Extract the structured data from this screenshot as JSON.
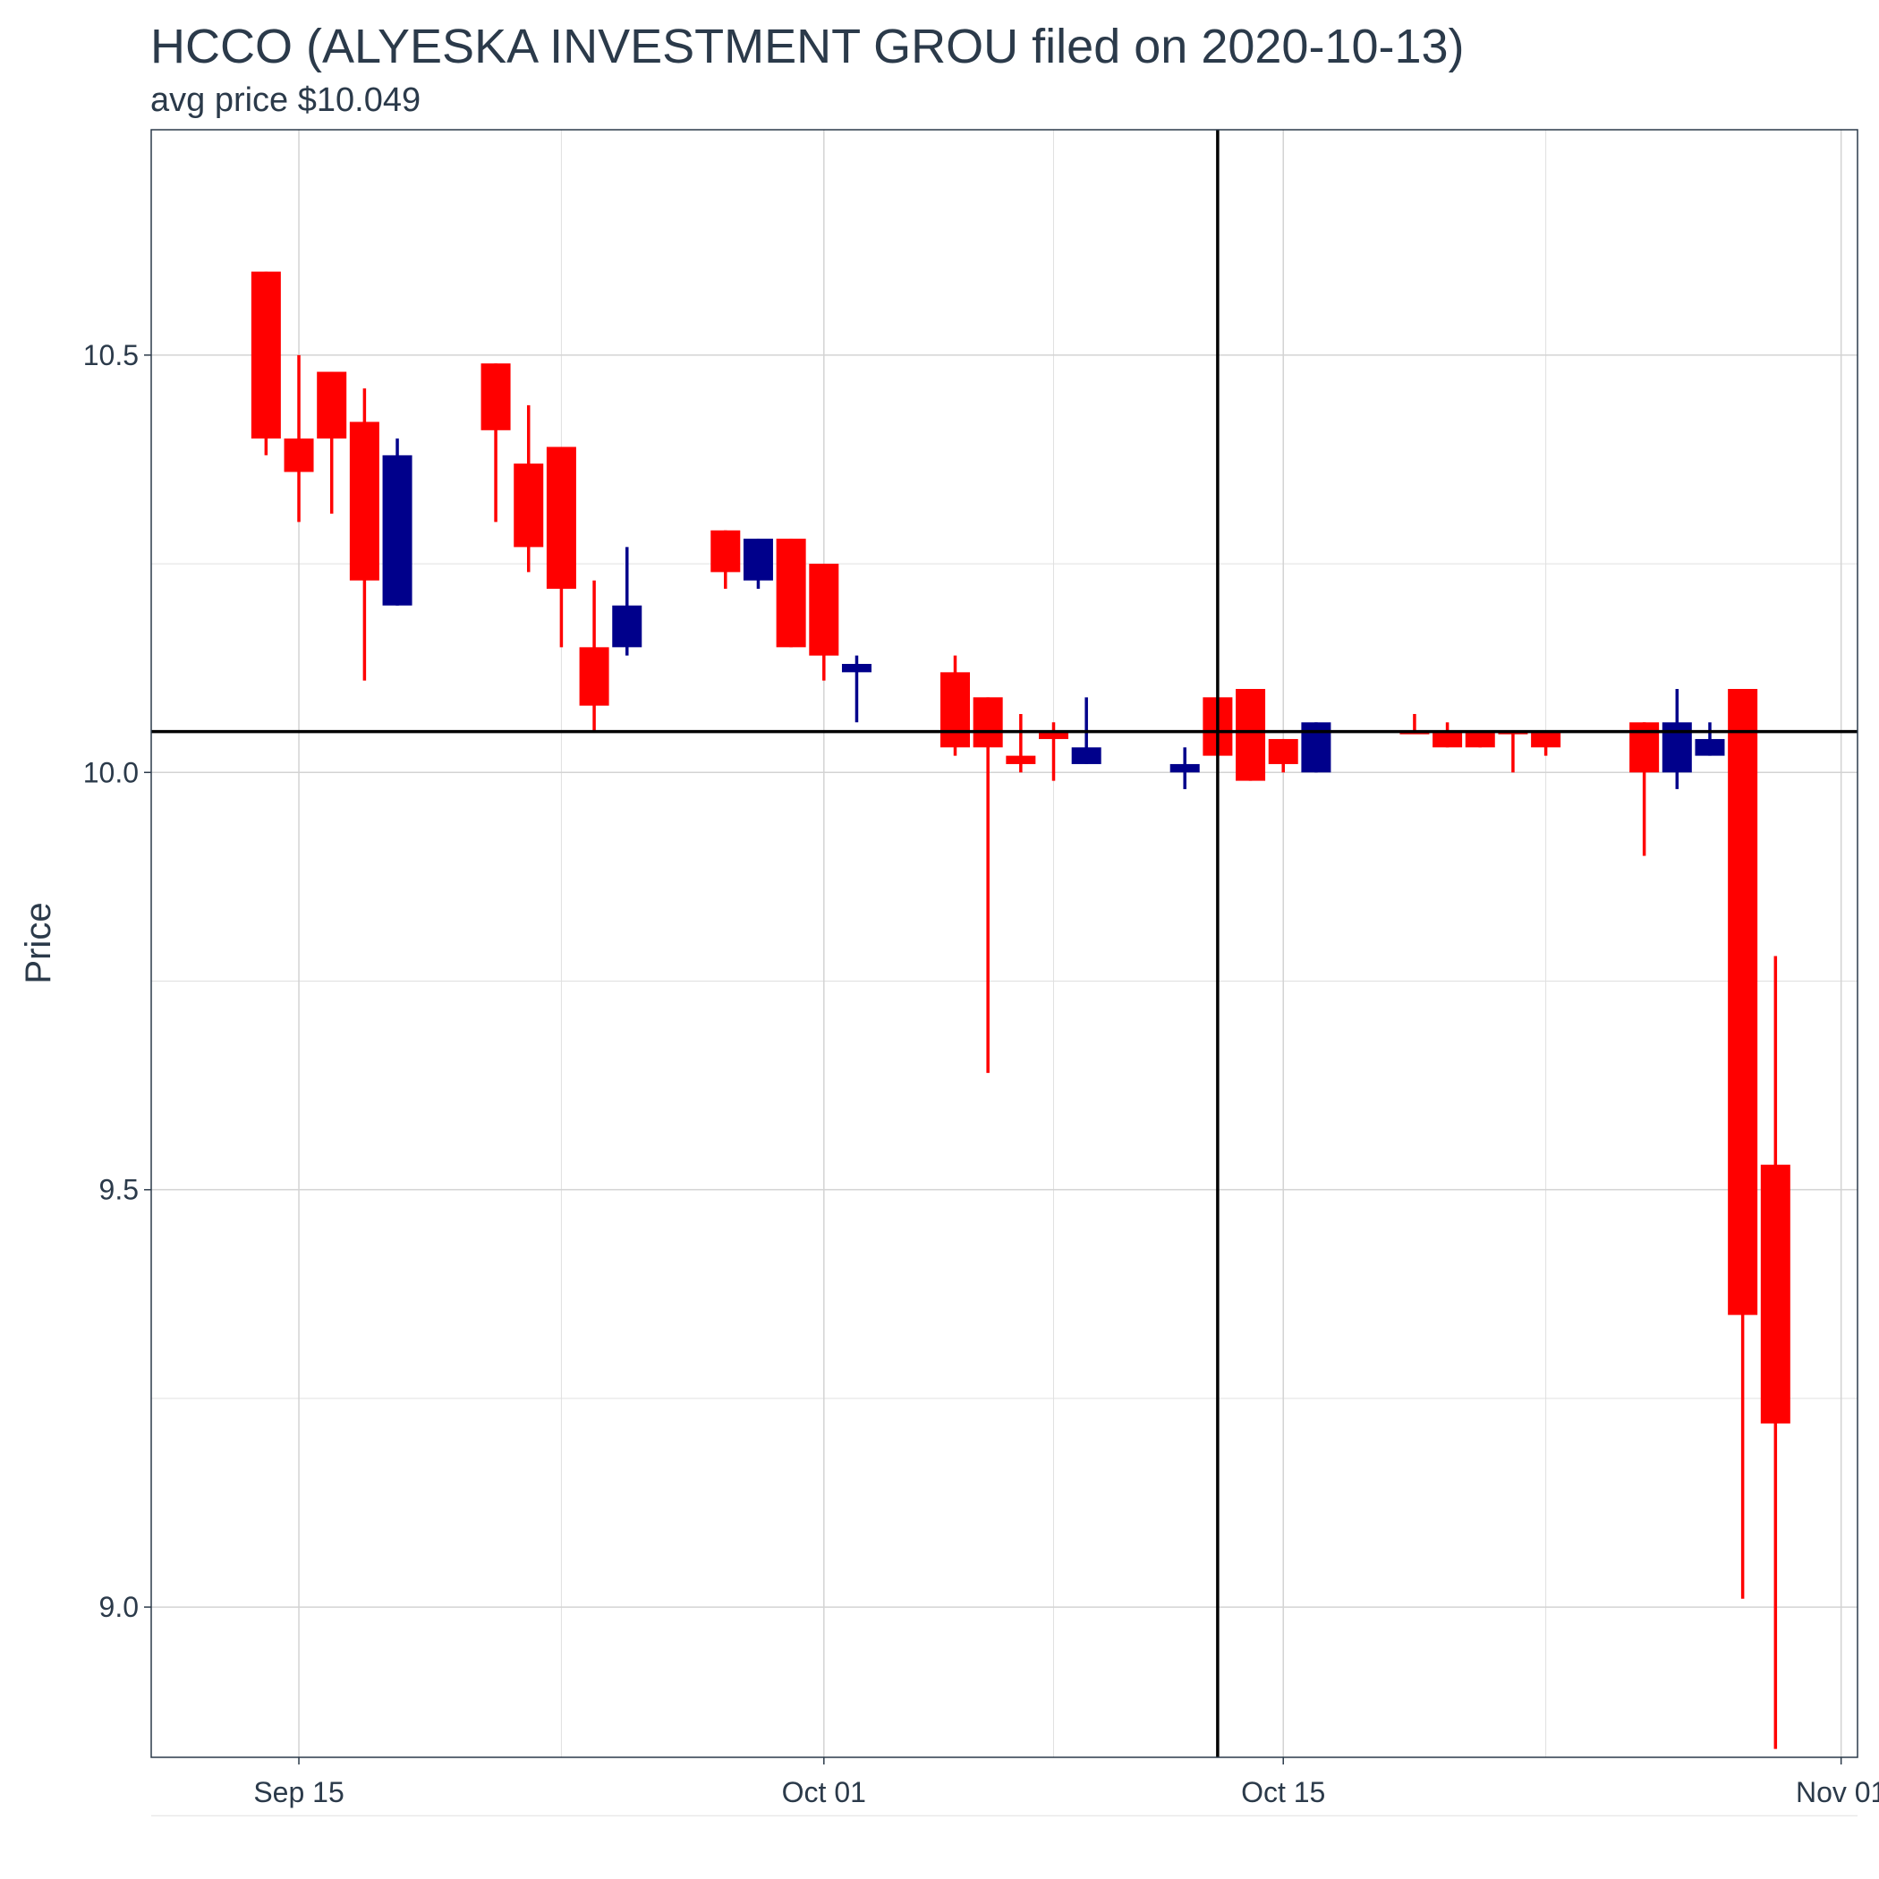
{
  "chart_data": {
    "type": "candlestick",
    "title": "HCCO (ALYESKA INVESTMENT GROU filed on 2020-10-13)",
    "subtitle": "avg price $10.049",
    "ylabel": "Price",
    "xlabel": "",
    "ylim": [
      8.82,
      10.77
    ],
    "xlim": [
      "2020-09-10T12:00",
      "2020-11-01T12:00"
    ],
    "y_ticks": [
      {
        "value": 9.0,
        "label": "9.0"
      },
      {
        "value": 9.5,
        "label": "9.5"
      },
      {
        "value": 10.0,
        "label": "10.0"
      },
      {
        "value": 10.5,
        "label": "10.5"
      }
    ],
    "y_minor_ticks": [
      8.75,
      9.25,
      9.75,
      10.25
    ],
    "x_ticks": [
      {
        "date": "2020-09-15",
        "label": "Sep 15"
      },
      {
        "date": "2020-10-01",
        "label": "Oct 01"
      },
      {
        "date": "2020-10-15",
        "label": "Oct 15"
      },
      {
        "date": "2020-11-01",
        "label": "Nov 01"
      }
    ],
    "x_minor_ticks": [
      "2020-09-23",
      "2020-10-08",
      "2020-10-23"
    ],
    "avg_price": 10.049,
    "filing_date": "2020-10-13",
    "grid": true,
    "legend": "none",
    "colors": {
      "down": "#ff0000",
      "up": "#00008b",
      "reference_line": "#000000",
      "grid": "#d3d3d3",
      "text": "#2b3a4a"
    },
    "candles": [
      {
        "date": "2020-09-14",
        "open": 10.6,
        "high": 10.6,
        "low": 10.38,
        "close": 10.4
      },
      {
        "date": "2020-09-15",
        "open": 10.4,
        "high": 10.5,
        "low": 10.3,
        "close": 10.36
      },
      {
        "date": "2020-09-16",
        "open": 10.48,
        "high": 10.48,
        "low": 10.31,
        "close": 10.4
      },
      {
        "date": "2020-09-17",
        "open": 10.42,
        "high": 10.46,
        "low": 10.11,
        "close": 10.23
      },
      {
        "date": "2020-09-18",
        "open": 10.2,
        "high": 10.4,
        "low": 10.2,
        "close": 10.38
      },
      {
        "date": "2020-09-21",
        "open": 10.49,
        "high": 10.49,
        "low": 10.3,
        "close": 10.41
      },
      {
        "date": "2020-09-22",
        "open": 10.37,
        "high": 10.44,
        "low": 10.24,
        "close": 10.27
      },
      {
        "date": "2020-09-23",
        "open": 10.39,
        "high": 10.39,
        "low": 10.15,
        "close": 10.22
      },
      {
        "date": "2020-09-24",
        "open": 10.15,
        "high": 10.23,
        "low": 10.05,
        "close": 10.08
      },
      {
        "date": "2020-09-25",
        "open": 10.15,
        "high": 10.27,
        "low": 10.14,
        "close": 10.2
      },
      {
        "date": "2020-09-28",
        "open": 10.29,
        "high": 10.29,
        "low": 10.22,
        "close": 10.24
      },
      {
        "date": "2020-09-29",
        "open": 10.23,
        "high": 10.28,
        "low": 10.22,
        "close": 10.28
      },
      {
        "date": "2020-09-30",
        "open": 10.28,
        "high": 10.28,
        "low": 10.15,
        "close": 10.15
      },
      {
        "date": "2020-10-01",
        "open": 10.25,
        "high": 10.25,
        "low": 10.11,
        "close": 10.14
      },
      {
        "date": "2020-10-02",
        "open": 10.12,
        "high": 10.14,
        "low": 10.06,
        "close": 10.13
      },
      {
        "date": "2020-10-05",
        "open": 10.12,
        "high": 10.14,
        "low": 10.02,
        "close": 10.03
      },
      {
        "date": "2020-10-06",
        "open": 10.09,
        "high": 10.09,
        "low": 9.64,
        "close": 10.03
      },
      {
        "date": "2020-10-07",
        "open": 10.02,
        "high": 10.07,
        "low": 10.0,
        "close": 10.01
      },
      {
        "date": "2020-10-08",
        "open": 10.05,
        "high": 10.06,
        "low": 9.99,
        "close": 10.04
      },
      {
        "date": "2020-10-09",
        "open": 10.01,
        "high": 10.09,
        "low": 10.01,
        "close": 10.03
      },
      {
        "date": "2020-10-12",
        "open": 10.0,
        "high": 10.03,
        "low": 9.98,
        "close": 10.01
      },
      {
        "date": "2020-10-13",
        "open": 10.09,
        "high": 10.09,
        "low": 10.02,
        "close": 10.02
      },
      {
        "date": "2020-10-14",
        "open": 10.1,
        "high": 10.1,
        "low": 9.99,
        "close": 9.99
      },
      {
        "date": "2020-10-15",
        "open": 10.04,
        "high": 10.04,
        "low": 10.0,
        "close": 10.01
      },
      {
        "date": "2020-10-16",
        "open": 10.0,
        "high": 10.06,
        "low": 10.0,
        "close": 10.06
      },
      {
        "date": "2020-10-19",
        "open": 10.05,
        "high": 10.07,
        "low": 10.05,
        "close": 10.05
      },
      {
        "date": "2020-10-20",
        "open": 10.05,
        "high": 10.06,
        "low": 10.03,
        "close": 10.03
      },
      {
        "date": "2020-10-21",
        "open": 10.05,
        "high": 10.05,
        "low": 10.03,
        "close": 10.03
      },
      {
        "date": "2020-10-22",
        "open": 10.05,
        "high": 10.05,
        "low": 10.0,
        "close": 10.05
      },
      {
        "date": "2020-10-23",
        "open": 10.05,
        "high": 10.05,
        "low": 10.02,
        "close": 10.03
      },
      {
        "date": "2020-10-26",
        "open": 10.06,
        "high": 10.06,
        "low": 9.9,
        "close": 10.0
      },
      {
        "date": "2020-10-27",
        "open": 10.0,
        "high": 10.1,
        "low": 9.98,
        "close": 10.06
      },
      {
        "date": "2020-10-28",
        "open": 10.02,
        "high": 10.06,
        "low": 10.02,
        "close": 10.04
      },
      {
        "date": "2020-10-29",
        "open": 10.1,
        "high": 10.1,
        "low": 9.01,
        "close": 9.35
      },
      {
        "date": "2020-10-30",
        "open": 9.53,
        "high": 9.78,
        "low": 8.83,
        "close": 9.22
      }
    ]
  }
}
